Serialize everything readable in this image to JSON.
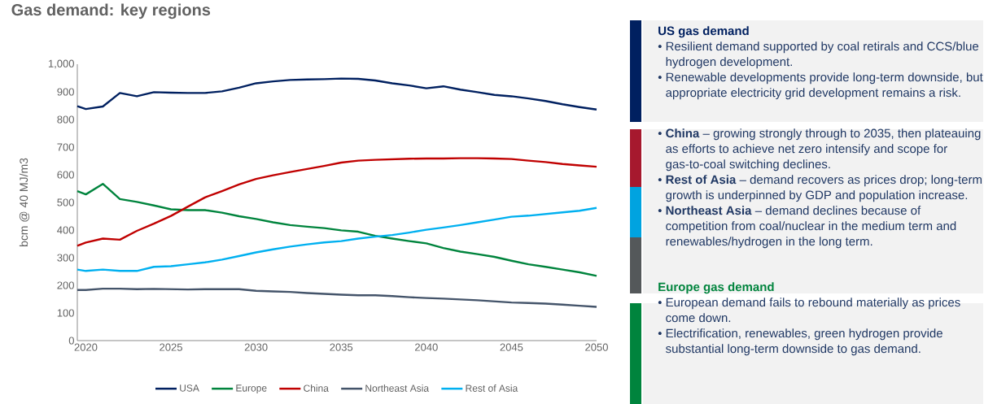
{
  "chart_data": [
    {
      "type": "line",
      "title": "Gas demand: key regions",
      "ylabel": "bcm @ 40 MJ/m3",
      "x": [
        2019.5,
        2020,
        2021,
        2022,
        2023,
        2024,
        2025,
        2026,
        2027,
        2028,
        2029,
        2030,
        2031,
        2032,
        2033,
        2034,
        2035,
        2036,
        2037,
        2038,
        2039,
        2040,
        2041,
        2042,
        2043,
        2044,
        2045,
        2046,
        2047,
        2048,
        2049,
        2050
      ],
      "xlim": [
        2019.5,
        2050
      ],
      "xticks": [
        2020,
        2025,
        2030,
        2035,
        2040,
        2045,
        2050
      ],
      "ylim": [
        0,
        1000
      ],
      "yticks": [
        0,
        100,
        200,
        300,
        400,
        500,
        600,
        700,
        800,
        900,
        {
          "value": 1000,
          "label": "1,000"
        }
      ],
      "legend": "bottom",
      "marker": "none",
      "line_style": "solid",
      "series": [
        {
          "name": "USA",
          "color": "#002060",
          "values": [
            848,
            838,
            847,
            896,
            884,
            899,
            897,
            896,
            896,
            902,
            915,
            931,
            938,
            943,
            945,
            946,
            948,
            947,
            941,
            931,
            923,
            913,
            920,
            908,
            899,
            889,
            884,
            876,
            867,
            855,
            845,
            836
          ]
        },
        {
          "name": "Europe",
          "color": "#00843d",
          "values": [
            541,
            529,
            567,
            512,
            502,
            489,
            475,
            472,
            472,
            463,
            450,
            440,
            428,
            418,
            412,
            407,
            399,
            394,
            379,
            369,
            360,
            352,
            335,
            322,
            313,
            303,
            289,
            276,
            267,
            257,
            247,
            234
          ]
        },
        {
          "name": "China",
          "color": "#c00000",
          "values": [
            343,
            355,
            369,
            365,
            397,
            423,
            451,
            485,
            518,
            541,
            565,
            585,
            598,
            610,
            621,
            632,
            644,
            651,
            654,
            656,
            658,
            659,
            659,
            660,
            660,
            659,
            657,
            651,
            646,
            639,
            634,
            629
          ]
        },
        {
          "name": "Northeast Asia",
          "color": "#44546a",
          "values": [
            183,
            183,
            188,
            188,
            186,
            187,
            186,
            185,
            186,
            186,
            186,
            180,
            178,
            176,
            172,
            169,
            166,
            164,
            164,
            161,
            157,
            154,
            152,
            149,
            146,
            142,
            138,
            136,
            134,
            130,
            126,
            122
          ]
        },
        {
          "name": "Rest of Asia",
          "color": "#00b0f0",
          "values": [
            257,
            252,
            257,
            252,
            252,
            267,
            269,
            276,
            283,
            293,
            306,
            319,
            330,
            340,
            348,
            355,
            360,
            369,
            376,
            382,
            391,
            401,
            409,
            418,
            428,
            438,
            448,
            452,
            458,
            464,
            470,
            480
          ]
        }
      ]
    },
    {
      "type": "other",
      "annotations": [
        "US gas demand",
        "• Resilient demand supported by coal retirals and CCS/blue hydrogen development.",
        "• Renewable developments provide long-term downside, but appropriate electricity grid development remains a risk.",
        "• **China** – growing strongly through to 2035, then plateauing as efforts to achieve net zero intensify and scope for gas-to-coal switching declines.",
        "• **Rest of Asia** – demand recovers as prices drop; long-term growth is underpinned by GDP and population increase.",
        "• **Northeast Asia** – demand declines because of competition from coal/nuclear in the medium term and renewables/hydrogen in the long term.",
        "Europe gas demand",
        "• European demand fails to rebound materially as prices come down.",
        "• Electrification, renewables, green hydrogen provide substantial long-term downside to gas demand."
      ]
    }
  ]
}
